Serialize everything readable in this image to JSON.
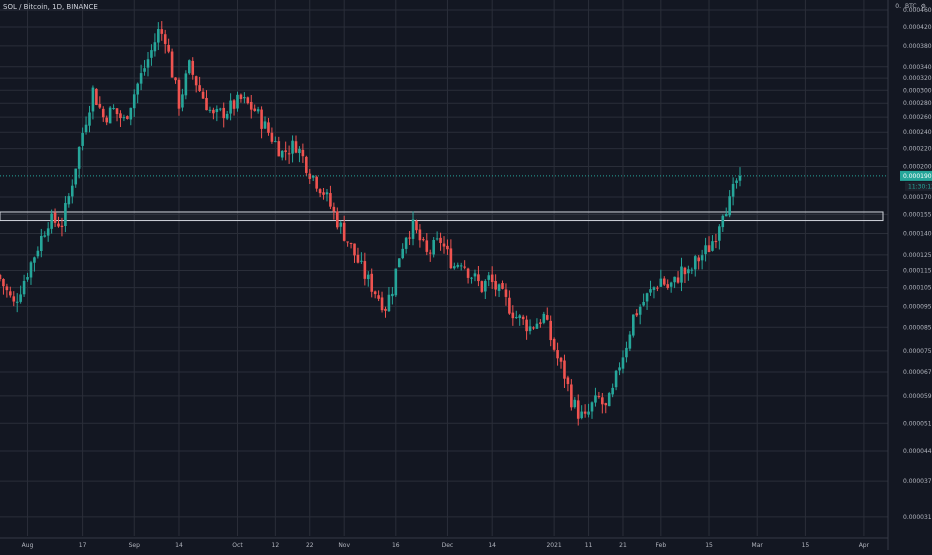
{
  "header": {
    "symbol_title": "SOL / Bitcoin, 1D, BINANCE",
    "currency_label": "BTC",
    "log_label": "0.",
    "scale_icon": "settings-icon"
  },
  "colors": {
    "background": "#131722",
    "grid": "#2a2e39",
    "up": "#26a69a",
    "down": "#ef5350",
    "axis_text": "#b2b5be",
    "last_price_bg": "#26a69a",
    "zone_border": "#d1d4dc"
  },
  "badges": {
    "last_price": "0.00019023",
    "countdown": "11:30:12"
  },
  "chart_data": {
    "type": "candlestick",
    "title": "SOL / Bitcoin, 1D, BINANCE",
    "y_scale": "log",
    "grid": true,
    "ylim": [
      2.8e-05,
      0.000485
    ],
    "y_ticks": [
      "0.00046000",
      "0.00042000",
      "0.00038000",
      "0.00034000",
      "0.00032000",
      "0.00030000",
      "0.00028000",
      "0.00026000",
      "0.00024000",
      "0.00022000",
      "0.00020000",
      "0.00017000",
      "0.00015500",
      "0.00014000",
      "0.00012500",
      "0.00011500",
      "0.00010500",
      "0.00009500",
      "0.00008500",
      "0.00007500",
      "0.00006700",
      "0.00005900",
      "0.00005100",
      "0.00004400",
      "0.00003750",
      "0.00003100"
    ],
    "x_ticks": [
      "Aug",
      "17",
      "Sep",
      "14",
      "Oct",
      "12",
      "22",
      "Nov",
      "16",
      "Dec",
      "14",
      "2021",
      "11",
      "21",
      "Feb",
      "15",
      "Mar",
      "15",
      "Apr"
    ],
    "x_range": [
      "2020-07-24",
      "2021-04-08"
    ],
    "x_tick_dates": [
      "2020-08-01",
      "2020-08-17",
      "2020-09-01",
      "2020-09-14",
      "2020-10-01",
      "2020-10-12",
      "2020-10-22",
      "2020-11-01",
      "2020-11-16",
      "2020-12-01",
      "2020-12-14",
      "2021-01-01",
      "2021-01-11",
      "2021-01-21",
      "2021-02-01",
      "2021-02-15",
      "2021-03-01",
      "2021-03-15",
      "2021-04-01"
    ],
    "zone": {
      "low": 0.00015,
      "high": 0.000157
    },
    "last_price": 0.00019023,
    "candles_start": "2020-07-24",
    "anchors": [
      [
        0,
        0.00011
      ],
      [
        4,
        9.6e-05
      ],
      [
        10,
        0.000125
      ],
      [
        14,
        0.00015
      ],
      [
        18,
        0.000148
      ],
      [
        20,
        0.00017
      ],
      [
        24,
        0.00024
      ],
      [
        27,
        0.0003
      ],
      [
        30,
        0.00026
      ],
      [
        33,
        0.00027
      ],
      [
        36,
        0.000255
      ],
      [
        40,
        0.00031
      ],
      [
        44,
        0.00037
      ],
      [
        46,
        0.00041
      ],
      [
        48,
        0.0004
      ],
      [
        50,
        0.00033
      ],
      [
        52,
        0.00028
      ],
      [
        55,
        0.00034
      ],
      [
        58,
        0.0003
      ],
      [
        62,
        0.00026
      ],
      [
        66,
        0.00027
      ],
      [
        70,
        0.000285
      ],
      [
        74,
        0.00027
      ],
      [
        78,
        0.00024
      ],
      [
        82,
        0.000215
      ],
      [
        86,
        0.000225
      ],
      [
        90,
        0.000195
      ],
      [
        94,
        0.000175
      ],
      [
        98,
        0.00015
      ],
      [
        102,
        0.00013
      ],
      [
        106,
        0.000112
      ],
      [
        110,
        0.0001
      ],
      [
        112,
        9.5e-05
      ],
      [
        114,
        0.000105
      ],
      [
        116,
        0.000125
      ],
      [
        118,
        0.00014
      ],
      [
        120,
        0.000145
      ],
      [
        122,
        0.000135
      ],
      [
        124,
        0.000125
      ],
      [
        126,
        0.00013
      ],
      [
        128,
        0.000135
      ],
      [
        130,
        0.000125
      ],
      [
        132,
        0.000118
      ],
      [
        134,
        0.000122
      ],
      [
        136,
        0.000115
      ],
      [
        140,
        0.000105
      ],
      [
        142,
        0.00011
      ],
      [
        146,
        0.0001
      ],
      [
        150,
        9e-05
      ],
      [
        154,
        8.5e-05
      ],
      [
        158,
        9e-05
      ],
      [
        160,
        8e-05
      ],
      [
        162,
        7.2e-05
      ],
      [
        164,
        6.6e-05
      ],
      [
        166,
        5.8e-05
      ],
      [
        168,
        5.4e-05
      ],
      [
        170,
        5.2e-05
      ],
      [
        172,
        5.6e-05
      ],
      [
        174,
        5.8e-05
      ],
      [
        176,
        5.5e-05
      ],
      [
        178,
        6e-05
      ],
      [
        180,
        7e-05
      ],
      [
        182,
        7.8e-05
      ],
      [
        184,
        9e-05
      ],
      [
        186,
        9.5e-05
      ],
      [
        188,
        0.0001
      ],
      [
        190,
        0.000105
      ],
      [
        192,
        0.00011
      ],
      [
        194,
        0.000105
      ],
      [
        196,
        0.000108
      ],
      [
        198,
        0.000115
      ],
      [
        200,
        0.000112
      ],
      [
        202,
        0.00012
      ],
      [
        204,
        0.000125
      ],
      [
        206,
        0.00013
      ],
      [
        208,
        0.00014
      ],
      [
        210,
        0.00016
      ],
      [
        212,
        0.000165
      ],
      [
        214,
        0.000185
      ],
      [
        215,
        0.00019
      ]
    ]
  }
}
